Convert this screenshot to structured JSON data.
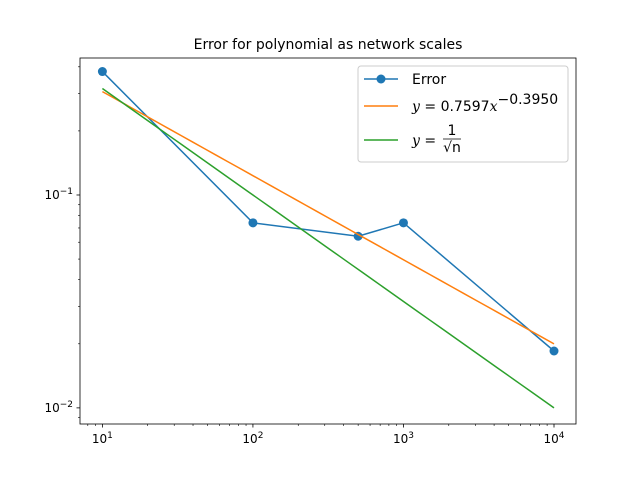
{
  "chart_data": {
    "type": "line",
    "title": "Error for polynomial as network scales",
    "xlabel": "",
    "ylabel": "",
    "xscale": "log",
    "yscale": "log",
    "xlim": [
      7.1,
      14000
    ],
    "ylim": [
      0.0084,
      0.44
    ],
    "x_tick_labels": [
      {
        "value": 10,
        "base": "10",
        "exp": "1"
      },
      {
        "value": 100,
        "base": "10",
        "exp": "2"
      },
      {
        "value": 1000,
        "base": "10",
        "exp": "3"
      },
      {
        "value": 10000,
        "base": "10",
        "exp": "4"
      }
    ],
    "y_tick_labels": [
      {
        "value": 0.1,
        "base": "10",
        "exp": "−1"
      },
      {
        "value": 0.01,
        "base": "10",
        "exp": "−2"
      }
    ],
    "grid": false,
    "legend_position": "top-right",
    "series": [
      {
        "name": "Error",
        "color": "#1f77b4",
        "marker": "circle",
        "x": [
          10,
          100,
          500,
          1000,
          10000
        ],
        "y": [
          0.38,
          0.074,
          0.064,
          0.074,
          0.0185
        ]
      },
      {
        "name_parts": {
          "lhs": "y",
          "eq": " = ",
          "coef": "0.7597",
          "var": "x",
          "exp": "−0.3950"
        },
        "color": "#ff7f0e",
        "function": "power",
        "coefficient": 0.7597,
        "exponent": -0.395,
        "x_range": [
          10,
          10000
        ]
      },
      {
        "name_parts": {
          "lhs": "y",
          "eq": " = ",
          "num": "1",
          "den": "√n"
        },
        "color": "#2ca02c",
        "function": "power",
        "coefficient": 1,
        "exponent": -0.5,
        "x_range": [
          10,
          10000
        ]
      }
    ]
  }
}
